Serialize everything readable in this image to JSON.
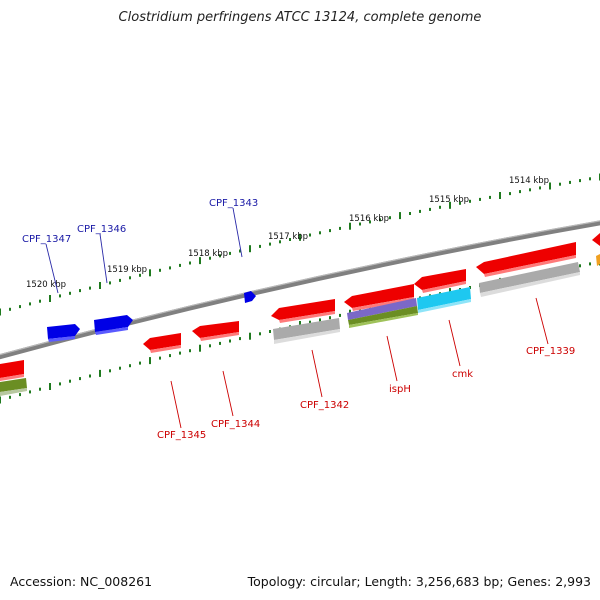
{
  "title": "Clostridium perfringens ATCC 13124, complete genome",
  "footer": {
    "accession": "Accession: NC_008261",
    "summary": "Topology: circular; Length: 3,256,683 bp; Genes: 2,993"
  },
  "colors": {
    "backbone": "#7a7a7a",
    "tick": "#1f7a1f",
    "forward_gene": "#0000ee",
    "reverse_gene": "#ee0000",
    "forward_label": "#1a1aa6",
    "reverse_label": "#cc0000",
    "gray_feature": "#b0b0b0",
    "olive_feature": "#6b8e23",
    "purple_feature": "#7b68c8",
    "cyan_feature": "#1ec8f0"
  },
  "scale_labels": [
    "1514 kbp",
    "1515 kbp",
    "1516 kbp",
    "1517 kbp",
    "1518 kbp",
    "1519 kbp",
    "1520 kbp"
  ],
  "forward_genes": [
    "CPF_1343",
    "CPF_1346",
    "CPF_1347"
  ],
  "reverse_genes": [
    "CPF_1339",
    "cmk",
    "ispH",
    "CPF_1342",
    "CPF_1344",
    "CPF_1345"
  ]
}
